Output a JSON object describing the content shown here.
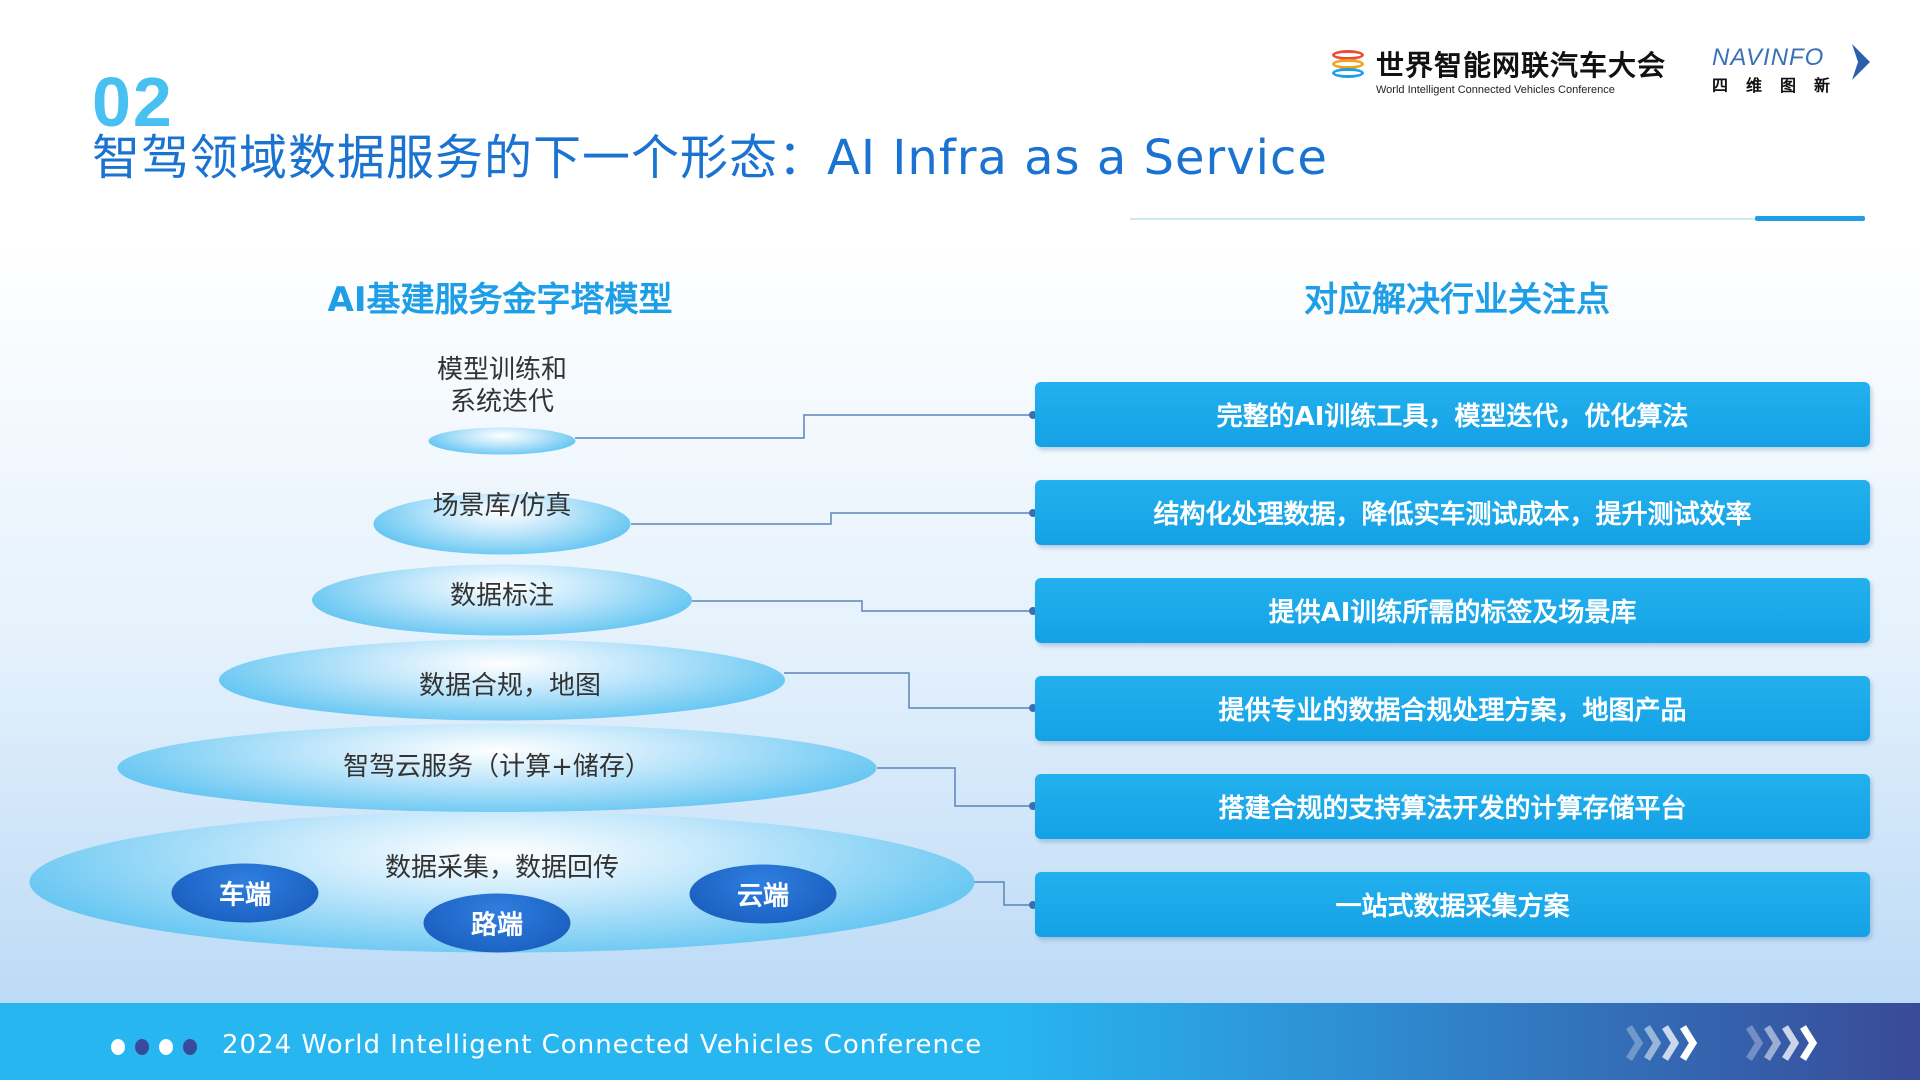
{
  "slide": {
    "number": "02",
    "title": "智驾领域数据服务的下一个形态：AI Infra as a Service"
  },
  "logos": {
    "wicv_badge": "WICV",
    "wicv_cn": "世界智能网联汽车大会",
    "wicv_en": "World Intelligent Connected Vehicles Conference",
    "navinfo_en": "NAVINFO",
    "navinfo_cn": "四维图新"
  },
  "left": {
    "heading": "AI基建服务金字塔模型",
    "layers": [
      "模型训练和\n系统迭代",
      "场景库/仿真",
      "数据标注",
      "数据合规，地图",
      "智驾云服务（计算+储存）",
      "数据采集，数据回传"
    ],
    "ends": [
      "车端",
      "路端",
      "云端"
    ]
  },
  "right": {
    "heading": "对应解决行业关注点",
    "items": [
      "完整的AI训练工具，模型迭代，优化算法",
      "结构化处理数据，降低实车测试成本，提升测试效率",
      "提供AI训练所需的标签及场景库",
      "提供专业的数据合规处理方案，地图产品",
      "搭建合规的支持算法开发的计算存储平台",
      "一站式数据采集方案"
    ]
  },
  "footer": {
    "text": "2024 World Intelligent Connected Vehicles Conference"
  },
  "colors": {
    "accent": "#1e9ee6",
    "title": "#1a73d1",
    "box": "#1aa8ea",
    "dark": "#1657b8"
  }
}
